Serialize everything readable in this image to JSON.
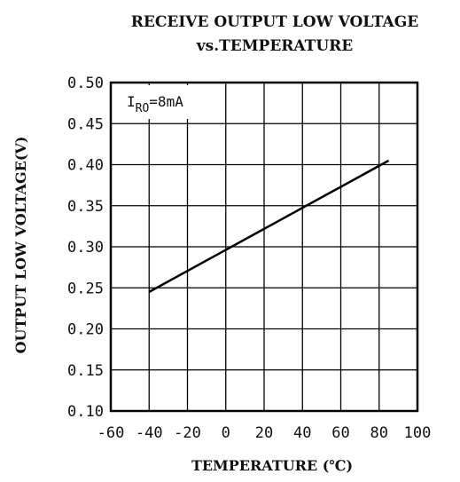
{
  "chart_data": {
    "type": "line",
    "title": "RECEIVE OUTPUT LOW VOLTAGE",
    "subtitle": "vs.TEMPERATURE",
    "xlabel": "TEMPERATURE (℃)",
    "ylabel": "OUTPUT LOW VOLTAGE(V)",
    "xlim": [
      -60,
      100
    ],
    "ylim": [
      0.1,
      0.5
    ],
    "x_ticks": [
      "-60",
      "-40",
      "-20",
      "0",
      "20",
      "40",
      "60",
      "80",
      "100"
    ],
    "y_ticks": [
      "0.10",
      "0.15",
      "0.20",
      "0.25",
      "0.30",
      "0.35",
      "0.40",
      "0.45",
      "0.50"
    ],
    "grid": true,
    "series": [
      {
        "x": [
          -40,
          85
        ],
        "y": [
          0.245,
          0.405
        ]
      }
    ],
    "annotation": {
      "prefix": "I",
      "subscript": "RO",
      "suffix": "=8mA"
    },
    "line_color": "#000000",
    "grid_color": "#000000"
  }
}
